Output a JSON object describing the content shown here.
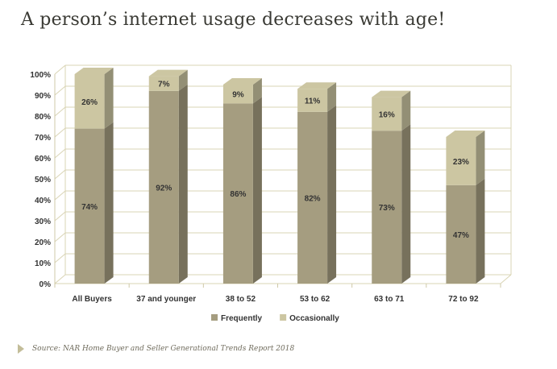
{
  "title": "A person’s internet usage decreases with age!",
  "source": "Source: NAR Home Buyer and Seller Generational Trends Report 2018",
  "colors": {
    "frequently": "#a59d80",
    "occasionally": "#ccc6a2",
    "grid": "#d9d4b4",
    "text": "#333333"
  },
  "chart_data": {
    "type": "bar",
    "stacked": true,
    "three_d": true,
    "categories": [
      "All Buyers",
      "37 and younger",
      "38 to 52",
      "53 to 62",
      "63 to 71",
      "72 to 92"
    ],
    "series": [
      {
        "name": "Frequently",
        "values": [
          74,
          92,
          86,
          82,
          73,
          47
        ],
        "labels": [
          "74%",
          "92%",
          "86%",
          "82%",
          "73%",
          "47%"
        ]
      },
      {
        "name": "Occasionally",
        "values": [
          26,
          7,
          9,
          11,
          16,
          23
        ],
        "labels": [
          "26%",
          "7%",
          "9%",
          "11%",
          "16%",
          "23%"
        ]
      }
    ],
    "y_ticks": [
      "0%",
      "10%",
      "20%",
      "30%",
      "40%",
      "50%",
      "60%",
      "70%",
      "80%",
      "90%",
      "100%"
    ],
    "ylim": [
      0,
      100
    ],
    "grid": true,
    "legend": "bottom-center"
  }
}
